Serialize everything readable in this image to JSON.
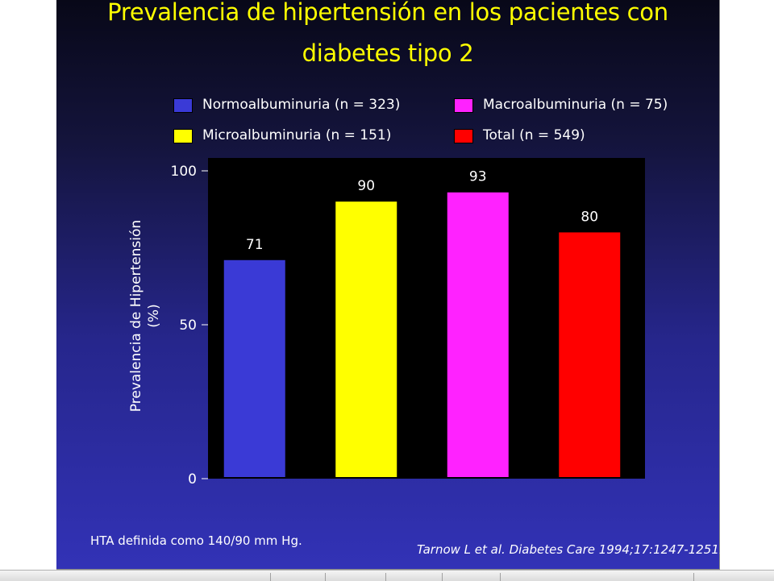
{
  "title": {
    "line1": "Prevalencia de hipertensión en los pacientes con",
    "line2": "diabetes tipo 2"
  },
  "legend": [
    {
      "label": "Normoalbuminuria (n = 323)",
      "color": "#3a3ad6"
    },
    {
      "label": "Macroalbuminuria (n = 75)",
      "color": "#ff22ff"
    },
    {
      "label": "Microalbuminuria (n = 151)",
      "color": "#ffff00"
    },
    {
      "label": "Total (n = 549)",
      "color": "#ff0000"
    }
  ],
  "chart_data": {
    "type": "bar",
    "categories": [
      "Normoalbuminuria (n = 323)",
      "Microalbuminuria (n = 151)",
      "Macroalbuminuria (n = 75)",
      "Total (n = 549)"
    ],
    "values": [
      71,
      90,
      93,
      80
    ],
    "data_labels": [
      "71",
      "90",
      "93",
      "80"
    ],
    "colors": [
      "#3a3ad6",
      "#ffff00",
      "#ff22ff",
      "#ff0000"
    ],
    "ylabel_line1": "Prevalencia de Hipertensión",
    "ylabel_line2": "(%)",
    "ylim": [
      0,
      100
    ],
    "yticks": [
      0,
      50,
      100
    ],
    "ytick_labels": [
      "0",
      "50",
      "100"
    ],
    "plot_background": "#000000",
    "legend_position": "top"
  },
  "footnote_left": "HTA definida como  140/90 mm Hg.",
  "footnote_right": "Tarnow L et al.  Diabetes Care 1994;17:1247-1251."
}
